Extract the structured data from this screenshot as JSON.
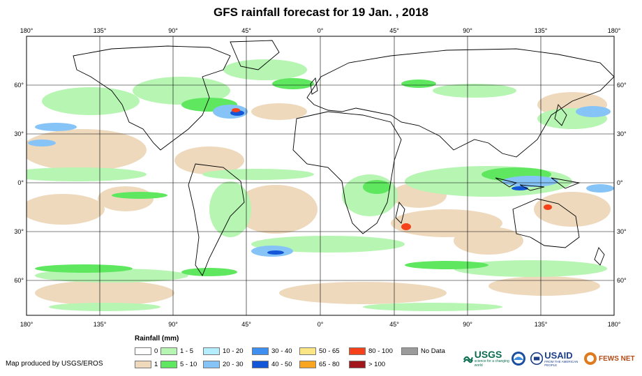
{
  "title": "GFS rainfall forecast for 19 Jan. , 2018",
  "longitude_ticks": [
    "180°",
    "135°",
    "90°",
    "45°",
    "0°",
    "45°",
    "90°",
    "135°",
    "180°"
  ],
  "latitude_ticks": [
    "60°",
    "30°",
    "0°",
    "30°",
    "60°"
  ],
  "legend": {
    "title": "Rainfall (mm)",
    "items": [
      {
        "label": "0",
        "color": "#ffffff"
      },
      {
        "label": "1",
        "color": "#eed9bd"
      },
      {
        "label": "1 - 5",
        "color": "#b6f5b2"
      },
      {
        "label": "5 - 10",
        "color": "#5fe85f"
      },
      {
        "label": "10 - 20",
        "color": "#b4eefc"
      },
      {
        "label": "20 - 30",
        "color": "#86c4f8"
      },
      {
        "label": "30 - 40",
        "color": "#3f8ff0"
      },
      {
        "label": "40 - 50",
        "color": "#1456d8"
      },
      {
        "label": "50 - 65",
        "color": "#fbe585"
      },
      {
        "label": "65 - 80",
        "color": "#f8a521"
      },
      {
        "label": "80 - 100",
        "color": "#f5421a"
      },
      {
        "label": "> 100",
        "color": "#a0161a"
      },
      {
        "label": "No Data",
        "color": "#9b9b9b"
      }
    ]
  },
  "credit": "Map produced by USGS/EROS",
  "logos": {
    "usgs": "USGS",
    "usgs_tagline": "science for a changing world",
    "usaid": "USAID",
    "usaid_tagline": "FROM THE AMERICAN PEOPLE",
    "fews": "FEWS NET"
  },
  "colors": {
    "ocean_dry": "#ffffff",
    "grid": "#000000",
    "coast": "#000000"
  }
}
